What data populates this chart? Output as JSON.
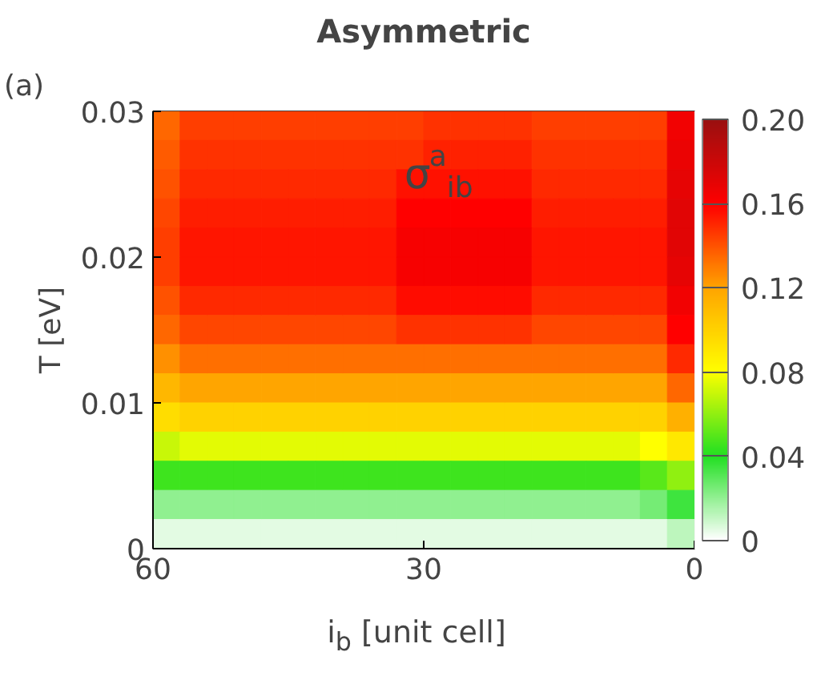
{
  "chart_data": {
    "type": "heatmap",
    "title": "Asymmetric",
    "xlabel": "i$_{b}$ [unit cell]",
    "ylabel": "T [eV]",
    "annotations": [
      "(a)",
      "σ$^{a}$$_{ib}$"
    ],
    "x": [
      58.5,
      55.5,
      52.5,
      49.5,
      46.5,
      43.5,
      40.5,
      37.5,
      34.5,
      31.5,
      28.5,
      25.5,
      22.5,
      19.5,
      16.5,
      13.5,
      10.5,
      7.5,
      4.5,
      1.5
    ],
    "y": [
      0.029,
      0.027,
      0.025,
      0.023,
      0.021,
      0.019,
      0.017,
      0.015,
      0.013,
      0.011,
      0.009,
      0.007,
      0.005,
      0.003,
      0.001
    ],
    "xlim": [
      60,
      0
    ],
    "xticks": [
      60,
      30,
      0
    ],
    "ylim": [
      0,
      0.03
    ],
    "yticks": [
      0,
      0.01,
      0.02,
      0.03
    ],
    "clim": [
      0,
      0.2
    ],
    "cticks": [
      0,
      0.04,
      0.08,
      0.12,
      0.16,
      {
        "value": 0.2,
        "label": "0.20"
      }
    ],
    "colors": [
      "#ffffff",
      "#22e022",
      "#ffff00",
      "#ffa500",
      "#ff0000",
      "#9a1010"
    ],
    "cells": [
      [
        0.135,
        0.145,
        0.145,
        0.145,
        0.145,
        0.145,
        0.145,
        0.145,
        0.145,
        0.145,
        0.148,
        0.148,
        0.148,
        0.148,
        0.145,
        0.145,
        0.145,
        0.145,
        0.145,
        0.165
      ],
      [
        0.138,
        0.148,
        0.148,
        0.148,
        0.148,
        0.148,
        0.148,
        0.148,
        0.148,
        0.148,
        0.152,
        0.152,
        0.152,
        0.152,
        0.148,
        0.148,
        0.148,
        0.148,
        0.148,
        0.168
      ],
      [
        0.14,
        0.15,
        0.15,
        0.15,
        0.15,
        0.15,
        0.15,
        0.15,
        0.15,
        0.156,
        0.156,
        0.156,
        0.156,
        0.156,
        0.15,
        0.15,
        0.15,
        0.15,
        0.15,
        0.17
      ],
      [
        0.143,
        0.153,
        0.153,
        0.153,
        0.153,
        0.153,
        0.153,
        0.153,
        0.153,
        0.16,
        0.16,
        0.16,
        0.16,
        0.16,
        0.153,
        0.153,
        0.153,
        0.153,
        0.153,
        0.172
      ],
      [
        0.145,
        0.155,
        0.155,
        0.155,
        0.155,
        0.155,
        0.155,
        0.155,
        0.155,
        0.163,
        0.163,
        0.163,
        0.163,
        0.163,
        0.155,
        0.155,
        0.155,
        0.155,
        0.155,
        0.172
      ],
      [
        0.145,
        0.155,
        0.155,
        0.155,
        0.155,
        0.155,
        0.155,
        0.155,
        0.155,
        0.163,
        0.163,
        0.163,
        0.163,
        0.163,
        0.155,
        0.155,
        0.155,
        0.155,
        0.155,
        0.17
      ],
      [
        0.14,
        0.15,
        0.15,
        0.15,
        0.15,
        0.15,
        0.15,
        0.15,
        0.15,
        0.157,
        0.157,
        0.157,
        0.157,
        0.157,
        0.15,
        0.15,
        0.15,
        0.15,
        0.15,
        0.165
      ],
      [
        0.135,
        0.143,
        0.143,
        0.143,
        0.143,
        0.143,
        0.143,
        0.143,
        0.143,
        0.148,
        0.148,
        0.148,
        0.148,
        0.148,
        0.143,
        0.143,
        0.143,
        0.143,
        0.143,
        0.16
      ],
      [
        0.125,
        0.133,
        0.133,
        0.133,
        0.133,
        0.133,
        0.133,
        0.133,
        0.133,
        0.133,
        0.133,
        0.133,
        0.133,
        0.133,
        0.133,
        0.133,
        0.133,
        0.133,
        0.133,
        0.15
      ],
      [
        0.112,
        0.12,
        0.12,
        0.12,
        0.12,
        0.12,
        0.12,
        0.12,
        0.12,
        0.12,
        0.12,
        0.12,
        0.12,
        0.12,
        0.12,
        0.12,
        0.12,
        0.12,
        0.12,
        0.135
      ],
      [
        0.095,
        0.1,
        0.1,
        0.1,
        0.1,
        0.1,
        0.1,
        0.1,
        0.1,
        0.1,
        0.1,
        0.1,
        0.1,
        0.1,
        0.1,
        0.1,
        0.1,
        0.1,
        0.1,
        0.115
      ],
      [
        0.07,
        0.075,
        0.075,
        0.075,
        0.075,
        0.075,
        0.075,
        0.075,
        0.075,
        0.075,
        0.075,
        0.075,
        0.075,
        0.075,
        0.075,
        0.075,
        0.075,
        0.075,
        0.08,
        0.09
      ],
      [
        0.045,
        0.045,
        0.045,
        0.045,
        0.045,
        0.045,
        0.045,
        0.045,
        0.045,
        0.045,
        0.045,
        0.045,
        0.045,
        0.045,
        0.045,
        0.045,
        0.045,
        0.045,
        0.05,
        0.06
      ],
      [
        0.02,
        0.02,
        0.02,
        0.02,
        0.02,
        0.02,
        0.02,
        0.02,
        0.02,
        0.02,
        0.02,
        0.02,
        0.02,
        0.02,
        0.02,
        0.02,
        0.02,
        0.02,
        0.025,
        0.035
      ],
      [
        0.005,
        0.005,
        0.005,
        0.005,
        0.005,
        0.005,
        0.005,
        0.005,
        0.005,
        0.005,
        0.005,
        0.005,
        0.005,
        0.005,
        0.005,
        0.005,
        0.005,
        0.005,
        0.005,
        0.012
      ]
    ]
  }
}
